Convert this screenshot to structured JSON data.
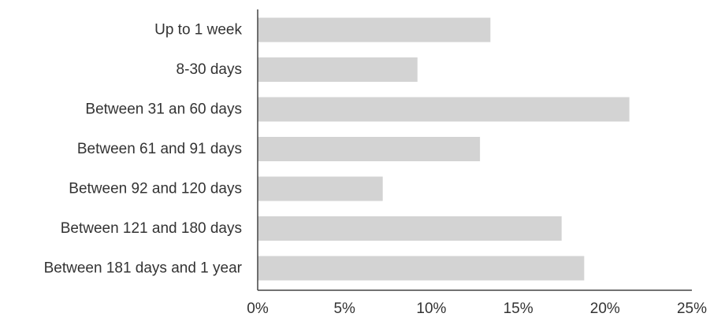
{
  "chart_data": {
    "type": "bar",
    "orientation": "horizontal",
    "title": "",
    "xlabel": "",
    "ylabel": "",
    "categories": [
      "Up to 1 week",
      "8-30 days",
      "Between 31 an 60 days",
      "Between 61 and 91 days",
      "Between 92 and 120 days",
      "Between 121 and 180 days",
      "Between 181 days and 1 year"
    ],
    "values": [
      13.4,
      9.2,
      21.4,
      12.8,
      7.2,
      17.5,
      18.8
    ],
    "xlim": [
      0,
      25
    ],
    "xticks": [
      0,
      5,
      10,
      15,
      20,
      25
    ],
    "xtick_labels": [
      "0%",
      "5%",
      "10%",
      "15%",
      "20%",
      "25%"
    ],
    "grid": false,
    "bar_color": "#d3d3d3"
  }
}
